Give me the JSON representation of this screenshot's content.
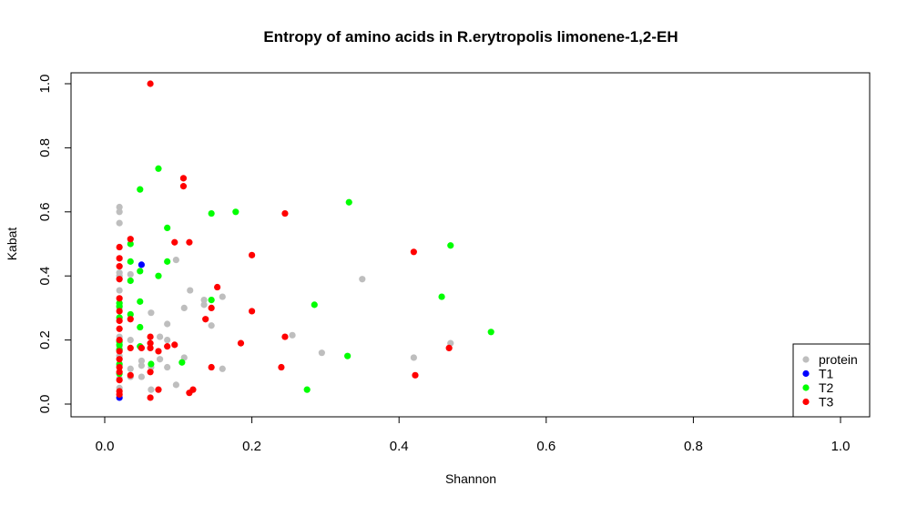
{
  "chart_data": {
    "type": "scatter",
    "title": "Entropy of amino acids in R.erytropolis limonene-1,2-EH",
    "xlabel": "Shannon",
    "ylabel": "Kabat",
    "xlim": [
      0,
      1
    ],
    "ylim": [
      0,
      1
    ],
    "x_ticks": [
      "0.0",
      "0.2",
      "0.4",
      "0.6",
      "0.8",
      "1.0"
    ],
    "y_ticks": [
      "0.0",
      "0.2",
      "0.4",
      "0.6",
      "0.8",
      "1.0"
    ],
    "grid": false,
    "legend_position": "bottom-right",
    "series": [
      {
        "name": "protein",
        "color": "#bebebe",
        "points": [
          [
            0.02,
            0.615
          ],
          [
            0.02,
            0.6
          ],
          [
            0.02,
            0.565
          ],
          [
            0.02,
            0.41
          ],
          [
            0.02,
            0.4
          ],
          [
            0.02,
            0.355
          ],
          [
            0.02,
            0.3
          ],
          [
            0.02,
            0.21
          ],
          [
            0.02,
            0.18
          ],
          [
            0.02,
            0.15
          ],
          [
            0.02,
            0.12
          ],
          [
            0.02,
            0.08
          ],
          [
            0.02,
            0.05
          ],
          [
            0.035,
            0.405
          ],
          [
            0.035,
            0.2
          ],
          [
            0.035,
            0.11
          ],
          [
            0.035,
            0.085
          ],
          [
            0.05,
            0.135
          ],
          [
            0.05,
            0.12
          ],
          [
            0.05,
            0.085
          ],
          [
            0.063,
            0.285
          ],
          [
            0.063,
            0.115
          ],
          [
            0.063,
            0.045
          ],
          [
            0.075,
            0.21
          ],
          [
            0.075,
            0.14
          ],
          [
            0.085,
            0.25
          ],
          [
            0.085,
            0.2
          ],
          [
            0.085,
            0.115
          ],
          [
            0.097,
            0.45
          ],
          [
            0.097,
            0.06
          ],
          [
            0.108,
            0.3
          ],
          [
            0.108,
            0.145
          ],
          [
            0.116,
            0.355
          ],
          [
            0.135,
            0.325
          ],
          [
            0.135,
            0.31
          ],
          [
            0.145,
            0.245
          ],
          [
            0.16,
            0.335
          ],
          [
            0.16,
            0.11
          ],
          [
            0.255,
            0.215
          ],
          [
            0.295,
            0.16
          ],
          [
            0.35,
            0.39
          ],
          [
            0.42,
            0.145
          ],
          [
            0.47,
            0.19
          ]
        ]
      },
      {
        "name": "T1",
        "color": "#0000ff",
        "points": [
          [
            0.02,
            0.02
          ],
          [
            0.05,
            0.435
          ]
        ]
      },
      {
        "name": "T2",
        "color": "#00ff00",
        "points": [
          [
            0.02,
            0.315
          ],
          [
            0.02,
            0.305
          ],
          [
            0.02,
            0.27
          ],
          [
            0.02,
            0.195
          ],
          [
            0.02,
            0.185
          ],
          [
            0.02,
            0.17
          ],
          [
            0.02,
            0.125
          ],
          [
            0.02,
            0.095
          ],
          [
            0.035,
            0.5
          ],
          [
            0.035,
            0.445
          ],
          [
            0.035,
            0.385
          ],
          [
            0.035,
            0.28
          ],
          [
            0.048,
            0.67
          ],
          [
            0.048,
            0.415
          ],
          [
            0.048,
            0.32
          ],
          [
            0.048,
            0.24
          ],
          [
            0.048,
            0.18
          ],
          [
            0.063,
            0.125
          ],
          [
            0.073,
            0.735
          ],
          [
            0.073,
            0.4
          ],
          [
            0.085,
            0.55
          ],
          [
            0.085,
            0.445
          ],
          [
            0.105,
            0.13
          ],
          [
            0.145,
            0.595
          ],
          [
            0.145,
            0.325
          ],
          [
            0.178,
            0.6
          ],
          [
            0.275,
            0.045
          ],
          [
            0.285,
            0.31
          ],
          [
            0.33,
            0.15
          ],
          [
            0.332,
            0.63
          ],
          [
            0.458,
            0.335
          ],
          [
            0.47,
            0.495
          ],
          [
            0.525,
            0.225
          ]
        ]
      },
      {
        "name": "T3",
        "color": "#ff0000",
        "points": [
          [
            0.02,
            0.49
          ],
          [
            0.02,
            0.455
          ],
          [
            0.02,
            0.43
          ],
          [
            0.02,
            0.39
          ],
          [
            0.02,
            0.33
          ],
          [
            0.02,
            0.29
          ],
          [
            0.02,
            0.26
          ],
          [
            0.02,
            0.235
          ],
          [
            0.02,
            0.2
          ],
          [
            0.02,
            0.165
          ],
          [
            0.02,
            0.14
          ],
          [
            0.02,
            0.115
          ],
          [
            0.02,
            0.1
          ],
          [
            0.02,
            0.075
          ],
          [
            0.02,
            0.04
          ],
          [
            0.02,
            0.03
          ],
          [
            0.035,
            0.515
          ],
          [
            0.035,
            0.265
          ],
          [
            0.035,
            0.175
          ],
          [
            0.035,
            0.09
          ],
          [
            0.05,
            0.175
          ],
          [
            0.062,
            1.0
          ],
          [
            0.062,
            0.21
          ],
          [
            0.062,
            0.19
          ],
          [
            0.062,
            0.175
          ],
          [
            0.062,
            0.1
          ],
          [
            0.062,
            0.02
          ],
          [
            0.073,
            0.165
          ],
          [
            0.073,
            0.045
          ],
          [
            0.085,
            0.18
          ],
          [
            0.095,
            0.505
          ],
          [
            0.095,
            0.185
          ],
          [
            0.107,
            0.705
          ],
          [
            0.107,
            0.68
          ],
          [
            0.115,
            0.505
          ],
          [
            0.115,
            0.035
          ],
          [
            0.12,
            0.045
          ],
          [
            0.137,
            0.265
          ],
          [
            0.145,
            0.3
          ],
          [
            0.145,
            0.115
          ],
          [
            0.153,
            0.365
          ],
          [
            0.185,
            0.19
          ],
          [
            0.2,
            0.465
          ],
          [
            0.2,
            0.29
          ],
          [
            0.24,
            0.115
          ],
          [
            0.245,
            0.595
          ],
          [
            0.245,
            0.21
          ],
          [
            0.42,
            0.475
          ],
          [
            0.422,
            0.09
          ],
          [
            0.468,
            0.175
          ]
        ]
      }
    ]
  }
}
